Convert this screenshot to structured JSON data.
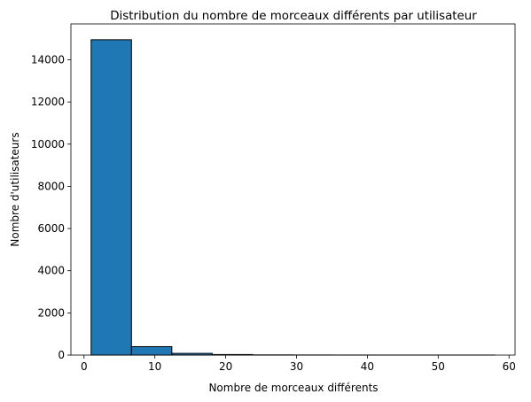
{
  "chart_data": {
    "type": "bar",
    "title": "Distribution du nombre de morceaux différents par utilisateur",
    "xlabel": "Nombre de morceaux différents",
    "ylabel": "Nombre d'utilisateurs",
    "xlim": [
      -1.85,
      60.85
    ],
    "ylim": [
      0,
      15700
    ],
    "xticks": [
      0,
      10,
      20,
      30,
      40,
      50,
      60
    ],
    "yticks": [
      0,
      2000,
      4000,
      6000,
      8000,
      10000,
      12000,
      14000
    ],
    "grid": false,
    "bins": [
      {
        "x0": 1.0,
        "x1": 6.7,
        "value": 14950
      },
      {
        "x0": 6.7,
        "x1": 12.4,
        "value": 400
      },
      {
        "x0": 12.4,
        "x1": 18.1,
        "value": 80
      },
      {
        "x0": 18.1,
        "x1": 23.8,
        "value": 25
      },
      {
        "x0": 23.8,
        "x1": 29.5,
        "value": 8
      },
      {
        "x0": 29.5,
        "x1": 35.2,
        "value": 4
      },
      {
        "x0": 35.2,
        "x1": 40.9,
        "value": 2
      },
      {
        "x0": 40.9,
        "x1": 46.6,
        "value": 1
      },
      {
        "x0": 46.6,
        "x1": 52.3,
        "value": 1
      },
      {
        "x0": 52.3,
        "x1": 58.0,
        "value": 1
      }
    ],
    "colors": {
      "bar": "#1f77b4",
      "edge": "#000000"
    }
  }
}
